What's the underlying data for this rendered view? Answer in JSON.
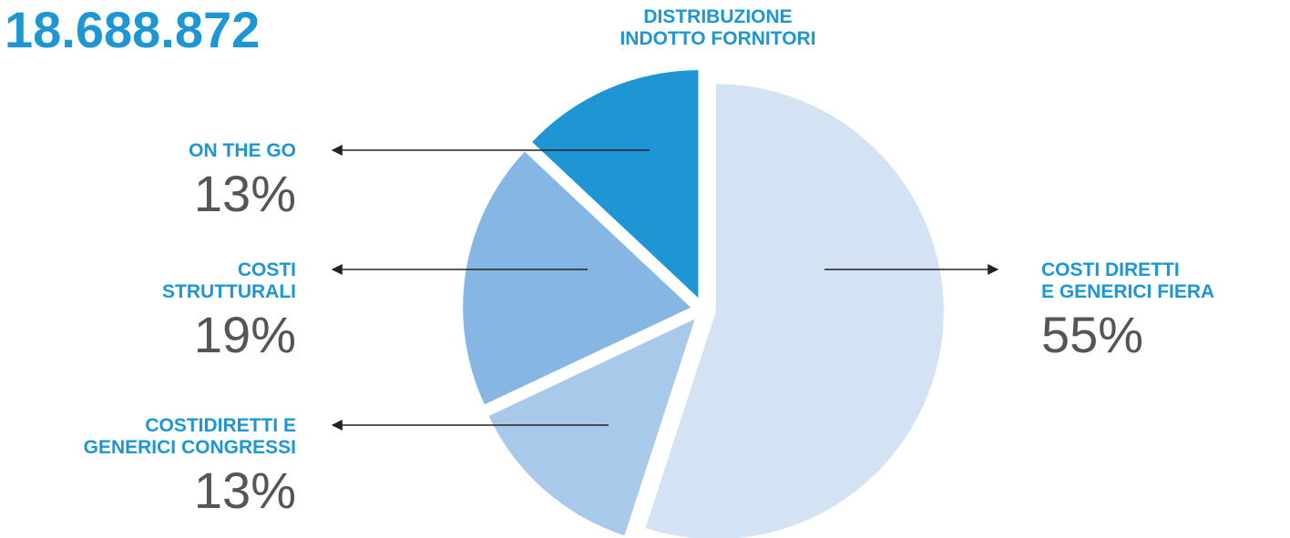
{
  "chart_data": {
    "type": "pie",
    "title": [
      "DISTRIBUZIONE",
      "INDOTTO FORNITORI"
    ],
    "annotation": "18.688.872",
    "categories": [
      [
        "COSTI DIRETTI",
        "E GENERICI FIERA"
      ],
      [
        "COSTIDIRETTI E",
        "GENERICI CONGRESSI"
      ],
      [
        "COSTI",
        "STRUTTURALI"
      ],
      [
        "ON THE GO"
      ]
    ],
    "values": [
      55,
      13,
      19,
      13
    ],
    "value_labels": [
      "55%",
      "13%",
      "19%",
      "13%"
    ],
    "colors": [
      "#d3e3f3",
      "#a9c9ea",
      "#86b6e3",
      "#1e96d4"
    ]
  }
}
